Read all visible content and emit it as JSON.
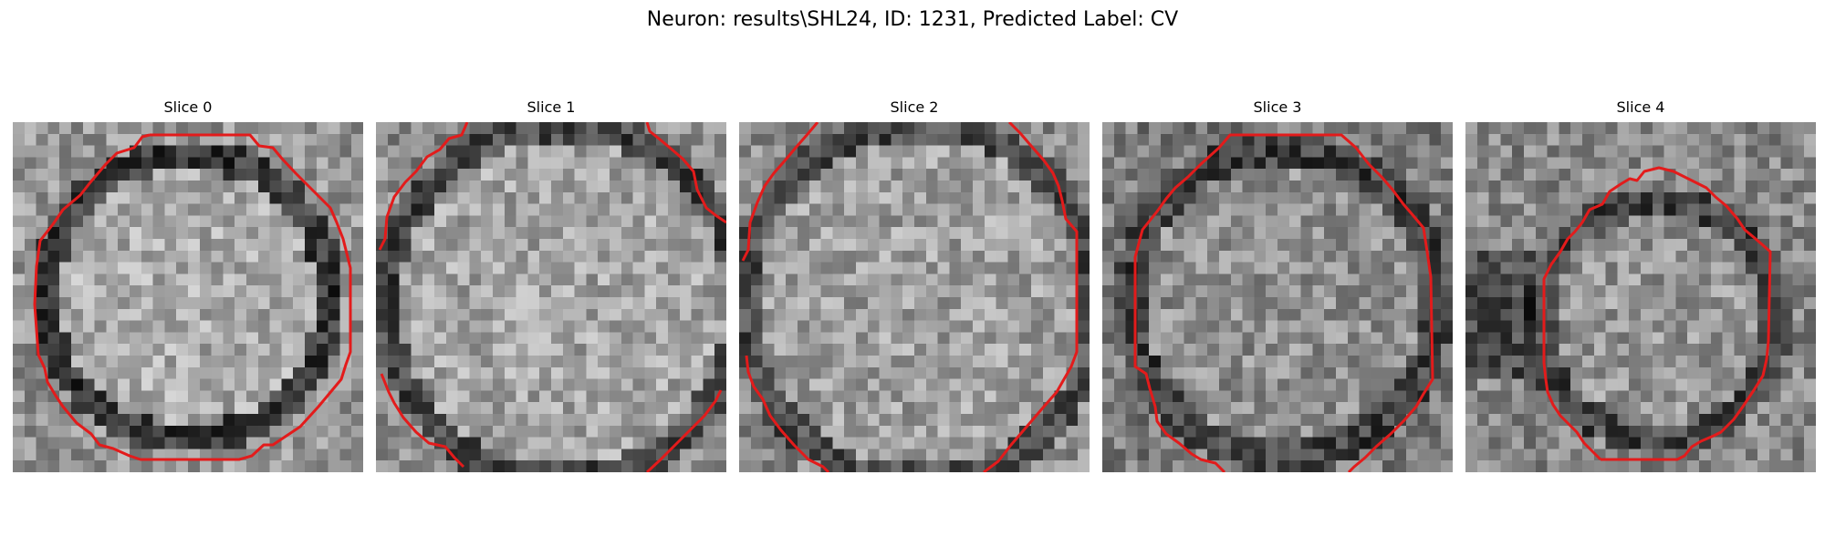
{
  "figure": {
    "title": "Neuron: results\\SHL24, ID: 1231, Predicted Label: CV"
  },
  "panels": [
    {
      "title": "Slice 0"
    },
    {
      "title": "Slice 1"
    },
    {
      "title": "Slice 2"
    },
    {
      "title": "Slice 3"
    },
    {
      "title": "Slice 4"
    }
  ],
  "colors": {
    "contour": "#e31b1b",
    "background": "#ffffff"
  },
  "image_style": "grayscale-microscopy-patch"
}
